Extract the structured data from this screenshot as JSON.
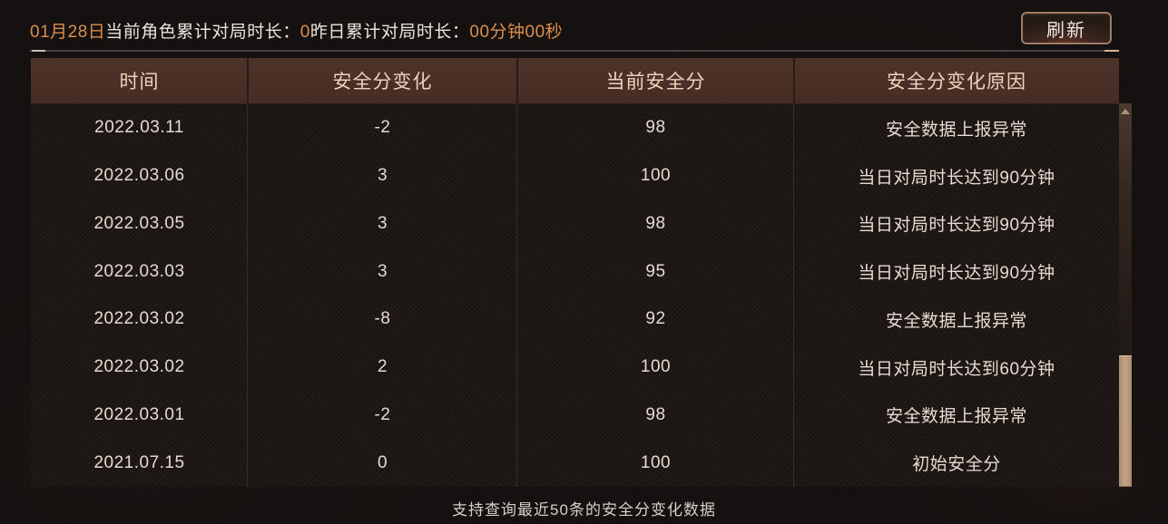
{
  "top_bar": {
    "date": "01月28日",
    "today_label": "当前角色累计对局时长：",
    "today_value": "0",
    "yesterday_label": "昨日累计对局时长：",
    "yesterday_value": "00分钟00秒",
    "refresh_label": "刷新"
  },
  "table": {
    "columns": [
      "时间",
      "安全分变化",
      "当前安全分",
      "安全分变化原因"
    ],
    "rows": [
      [
        "2022.03.11",
        "-2",
        "98",
        "安全数据上报异常"
      ],
      [
        "2022.03.06",
        "3",
        "100",
        "当日对局时长达到90分钟"
      ],
      [
        "2022.03.05",
        "3",
        "98",
        "当日对局时长达到90分钟"
      ],
      [
        "2022.03.03",
        "3",
        "95",
        "当日对局时长达到90分钟"
      ],
      [
        "2022.03.02",
        "-8",
        "92",
        "安全数据上报异常"
      ],
      [
        "2022.03.02",
        "2",
        "100",
        "当日对局时长达到60分钟"
      ],
      [
        "2022.03.01",
        "-2",
        "98",
        "安全数据上报异常"
      ],
      [
        "2021.07.15",
        "0",
        "100",
        "初始安全分"
      ]
    ]
  },
  "footer": {
    "note": "支持查询最近50条的安全分变化数据"
  },
  "colors": {
    "accent_orange": "#db8f4e",
    "body_text": "#e8dacf",
    "header_bg": "#4a2f27",
    "header_text": "#f0d1bc",
    "scroll_thumb": "#b59478",
    "page_bg": "#141110"
  }
}
